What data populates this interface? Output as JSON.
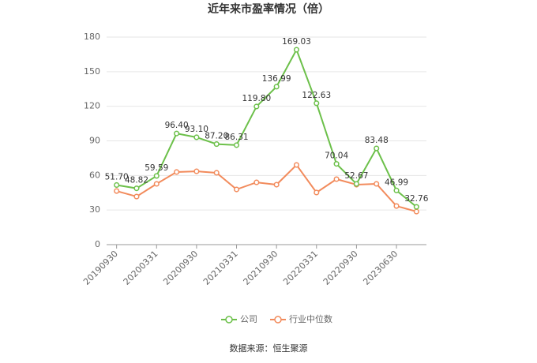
{
  "chart_data": {
    "type": "line",
    "title": "近年来市盈率情况（倍）",
    "categories": [
      "20190930",
      null,
      "20200331",
      null,
      "20200930",
      null,
      "20210331",
      null,
      "20210930",
      null,
      "20220331",
      null,
      "20220930",
      null,
      "20230630",
      null
    ],
    "series": [
      {
        "name": "公司",
        "color": "#6cc04a",
        "values": [
          51.7,
          48.82,
          59.59,
          96.4,
          93.1,
          87.2,
          86.31,
          119.8,
          136.99,
          169.03,
          122.63,
          70.04,
          52.67,
          83.48,
          46.99,
          32.76
        ],
        "value_labels": [
          "51.70",
          "48.82",
          "59.59",
          "96.40",
          "93.10",
          "87.20",
          "86.31",
          "119.80",
          "136.99",
          "169.03",
          "122.63",
          "70.04",
          "52.67",
          "83.48",
          "46.99",
          "32.76"
        ]
      },
      {
        "name": "行业中位数",
        "color": "#f28b5c",
        "values": [
          46.5,
          41.7,
          52.7,
          63,
          63.6,
          62.3,
          47.9,
          54,
          52,
          69.1,
          45.2,
          56.8,
          52,
          52.7,
          33.5,
          28.7
        ]
      }
    ],
    "ylim": [
      0,
      180
    ],
    "yticks": [
      0,
      30,
      60,
      90,
      120,
      150,
      180
    ],
    "grid": true,
    "source": "数据来源：恒生聚源"
  }
}
